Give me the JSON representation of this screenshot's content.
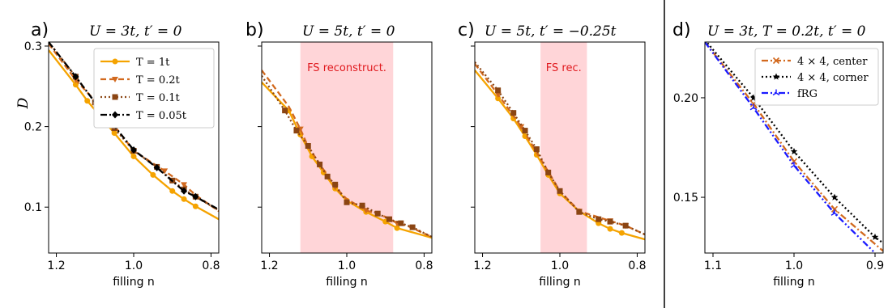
{
  "colors": {
    "T1": "#f5a300",
    "T02": "#d2691e",
    "T01": "#8b4513",
    "T005": "#000000",
    "center": "#d2691e",
    "corner": "#000000",
    "frg": "#1a1aff",
    "shade": "#ffd5d8",
    "region_text": "#e0191e"
  },
  "chart_data": [
    {
      "type": "line",
      "panel_label": "a)",
      "title": "U = 3t, t′ = 0",
      "xlabel": "filling n",
      "ylabel": "D",
      "xlim": [
        1.22,
        0.78
      ],
      "ylim": [
        0.043,
        0.305
      ],
      "xticks": [
        1.2,
        1.0,
        0.8
      ],
      "xtick_labels": [
        "1.2",
        "1.0",
        "0.8"
      ],
      "yticks": [
        0.1,
        0.2,
        0.3
      ],
      "ytick_labels": [
        "0.1",
        "0.2",
        "0.3"
      ],
      "legend_position": "upper right",
      "series": [
        {
          "name": "T = 1t",
          "style": "solid",
          "marker": "circle",
          "color_key": "T1",
          "x": [
            1.22,
            1.15,
            1.12,
            1.05,
            1.0,
            0.95,
            0.9,
            0.87,
            0.84,
            0.78
          ],
          "y": [
            0.295,
            0.252,
            0.232,
            0.192,
            0.163,
            0.14,
            0.12,
            0.11,
            0.101,
            0.085
          ],
          "mx": [
            1.15,
            1.12,
            1.05,
            1.0,
            0.95,
            0.9,
            0.87,
            0.84
          ],
          "my": [
            0.252,
            0.232,
            0.192,
            0.163,
            0.14,
            0.12,
            0.11,
            0.101
          ]
        },
        {
          "name": "T = 0.2t",
          "style": "dashed",
          "marker": "triangle-down",
          "color_key": "T02",
          "x": [
            1.22,
            1.15,
            1.1,
            1.0,
            0.92,
            0.87,
            0.84,
            0.78
          ],
          "y": [
            0.303,
            0.258,
            0.232,
            0.17,
            0.145,
            0.128,
            0.115,
            0.095
          ],
          "mx": [
            1.15,
            1.0,
            0.92,
            0.87
          ],
          "my": [
            0.258,
            0.17,
            0.145,
            0.128
          ]
        },
        {
          "name": "T = 0.1t",
          "style": "dotted",
          "marker": "square",
          "color_key": "T01",
          "x": [
            1.22,
            1.15,
            1.1,
            1.05,
            1.0,
            0.94,
            0.9,
            0.87,
            0.84,
            0.78
          ],
          "y": [
            0.305,
            0.262,
            0.23,
            0.198,
            0.17,
            0.15,
            0.133,
            0.122,
            0.113,
            0.096
          ],
          "mx": [
            1.15,
            1.1,
            1.05,
            1.0,
            0.94,
            0.9,
            0.87,
            0.84
          ],
          "my": [
            0.262,
            0.23,
            0.198,
            0.17,
            0.15,
            0.133,
            0.122,
            0.113
          ]
        },
        {
          "name": "T = 0.05t",
          "style": "dashdot",
          "marker": "diamond",
          "color_key": "T005",
          "x": [
            1.22,
            1.15,
            1.1,
            1.0,
            0.94,
            0.87,
            0.84,
            0.78
          ],
          "y": [
            0.305,
            0.262,
            0.23,
            0.171,
            0.149,
            0.12,
            0.113,
            0.097
          ],
          "mx": [
            1.15,
            1.0,
            0.94,
            0.87,
            0.84
          ],
          "my": [
            0.262,
            0.171,
            0.149,
            0.12,
            0.113
          ]
        }
      ]
    },
    {
      "type": "line",
      "panel_label": "b)",
      "title": "U = 5t, t′ = 0",
      "xlabel": "filling n",
      "ylabel": "",
      "xlim": [
        1.22,
        0.78
      ],
      "ylim": [
        0.043,
        0.305
      ],
      "xticks": [
        1.2,
        1.0,
        0.8
      ],
      "xtick_labels": [
        "1.2",
        "1.0",
        "0.8"
      ],
      "yticks": [
        0.1,
        0.2,
        0.3
      ],
      "ytick_labels": [
        "",
        "",
        ""
      ],
      "shaded_region": {
        "x": [
          1.12,
          0.88
        ],
        "label": "FS reconstruct."
      },
      "series": [
        {
          "style": "solid",
          "marker": "circle",
          "color_key": "T1",
          "x": [
            1.22,
            1.15,
            1.12,
            1.09,
            1.06,
            1.03,
            1.0,
            0.95,
            0.9,
            0.87,
            0.84,
            0.78
          ],
          "y": [
            0.255,
            0.22,
            0.19,
            0.163,
            0.143,
            0.123,
            0.108,
            0.094,
            0.082,
            0.074,
            0.07,
            0.062
          ],
          "mx": [
            1.15,
            1.12,
            1.09,
            1.06,
            1.03,
            1.0,
            0.95,
            0.9,
            0.87
          ],
          "my": [
            0.22,
            0.19,
            0.163,
            0.143,
            0.123,
            0.108,
            0.094,
            0.082,
            0.074
          ]
        },
        {
          "style": "dashed",
          "marker": "triangle-down",
          "color_key": "T02",
          "x": [
            1.22,
            1.15,
            1.12,
            1.1,
            1.03,
            1.0,
            0.95,
            0.9,
            0.87,
            0.84,
            0.78
          ],
          "y": [
            0.27,
            0.225,
            0.197,
            0.175,
            0.125,
            0.11,
            0.096,
            0.088,
            0.08,
            0.076,
            0.063
          ],
          "mx": [
            1.12,
            1.03,
            0.95,
            0.87
          ],
          "my": [
            0.197,
            0.125,
            0.096,
            0.08
          ]
        },
        {
          "style": "dotted",
          "marker": "square",
          "color_key": "T01",
          "x": [
            1.22,
            1.16,
            1.13,
            1.1,
            1.07,
            1.05,
            1.03,
            1.0,
            0.96,
            0.92,
            0.89,
            0.86,
            0.83,
            0.78
          ],
          "y": [
            0.263,
            0.22,
            0.195,
            0.176,
            0.153,
            0.138,
            0.128,
            0.106,
            0.102,
            0.092,
            0.085,
            0.08,
            0.075,
            0.063
          ],
          "mx": [
            1.16,
            1.13,
            1.1,
            1.07,
            1.05,
            1.03,
            1.0,
            0.96,
            0.92,
            0.89,
            0.86,
            0.83
          ],
          "my": [
            0.22,
            0.195,
            0.176,
            0.153,
            0.138,
            0.128,
            0.106,
            0.102,
            0.092,
            0.085,
            0.08,
            0.075
          ]
        }
      ]
    },
    {
      "type": "line",
      "panel_label": "c)",
      "title": "U = 5t, t′ = −0.25t",
      "xlabel": "filling n",
      "ylabel": "",
      "xlim": [
        1.22,
        0.78
      ],
      "ylim": [
        0.043,
        0.305
      ],
      "xticks": [
        1.2,
        1.0,
        0.8
      ],
      "xtick_labels": [
        "1.2",
        "1.0",
        "0.8"
      ],
      "yticks": [
        0.1,
        0.2,
        0.3
      ],
      "ytick_labels": [
        "",
        "",
        ""
      ],
      "shaded_region": {
        "x": [
          1.05,
          0.93
        ],
        "label": "FS rec."
      },
      "series": [
        {
          "style": "solid",
          "marker": "circle",
          "color_key": "T1",
          "x": [
            1.22,
            1.16,
            1.12,
            1.09,
            1.06,
            1.03,
            1.0,
            0.95,
            0.9,
            0.87,
            0.84,
            0.78
          ],
          "y": [
            0.27,
            0.235,
            0.21,
            0.188,
            0.165,
            0.14,
            0.117,
            0.095,
            0.08,
            0.073,
            0.068,
            0.06
          ],
          "mx": [
            1.16,
            1.12,
            1.09,
            1.06,
            1.03,
            1.0,
            0.95,
            0.9,
            0.87,
            0.84
          ],
          "my": [
            0.235,
            0.21,
            0.188,
            0.165,
            0.14,
            0.117,
            0.095,
            0.08,
            0.073,
            0.068
          ]
        },
        {
          "style": "dashed",
          "marker": "triangle-down",
          "color_key": "T02",
          "x": [
            1.22,
            1.16,
            1.1,
            1.0,
            0.95,
            0.87,
            0.83,
            0.78
          ],
          "y": [
            0.278,
            0.24,
            0.2,
            0.12,
            0.095,
            0.083,
            0.077,
            0.066
          ],
          "mx": [
            1.16,
            1.1,
            0.95,
            0.87,
            0.83
          ],
          "my": [
            0.24,
            0.2,
            0.095,
            0.083,
            0.077
          ]
        },
        {
          "style": "dotted",
          "marker": "square",
          "color_key": "T01",
          "x": [
            1.22,
            1.16,
            1.12,
            1.09,
            1.06,
            1.03,
            1.0,
            0.95,
            0.9,
            0.87,
            0.83,
            0.78
          ],
          "y": [
            0.28,
            0.245,
            0.217,
            0.195,
            0.172,
            0.143,
            0.12,
            0.094,
            0.085,
            0.082,
            0.077,
            0.066
          ],
          "mx": [
            1.16,
            1.12,
            1.09,
            1.06,
            1.03,
            1.0,
            0.95,
            0.9,
            0.87,
            0.83
          ],
          "my": [
            0.245,
            0.217,
            0.195,
            0.172,
            0.143,
            0.12,
            0.094,
            0.085,
            0.082,
            0.077
          ]
        }
      ]
    },
    {
      "type": "line",
      "panel_label": "d)",
      "title": "U = 3t, T = 0.2t, t′ = 0",
      "xlabel": "filling n",
      "ylabel": "",
      "xlim": [
        1.11,
        0.89
      ],
      "ylim": [
        0.122,
        0.228
      ],
      "xticks": [
        1.1,
        1.0,
        0.9
      ],
      "xtick_labels": [
        "1.1",
        "1.0",
        "0.9"
      ],
      "yticks": [
        0.15,
        0.2
      ],
      "ytick_labels": [
        "0.15",
        "0.20"
      ],
      "legend_position": "upper right",
      "series": [
        {
          "name": "4 × 4, center",
          "style": "dashdot",
          "marker": "x",
          "color_key": "center",
          "x": [
            1.11,
            1.05,
            1.0,
            0.95,
            0.89
          ],
          "y": [
            0.228,
            0.197,
            0.168,
            0.144,
            0.123
          ],
          "mx": [
            1.05,
            1.0,
            0.95
          ],
          "my": [
            0.197,
            0.168,
            0.144
          ]
        },
        {
          "name": "4 × 4, corner",
          "style": "dotted",
          "marker": "star",
          "color_key": "corner",
          "x": [
            1.11,
            1.05,
            1.0,
            0.95,
            0.9,
            0.89
          ],
          "y": [
            0.229,
            0.2,
            0.173,
            0.15,
            0.13,
            0.127
          ],
          "mx": [
            1.05,
            1.0,
            0.95,
            0.9
          ],
          "my": [
            0.2,
            0.173,
            0.15,
            0.13
          ]
        },
        {
          "name": "fRG",
          "style": "dashdotdot",
          "marker": "tri",
          "color_key": "frg",
          "x": [
            1.11,
            1.05,
            1.0,
            0.95,
            0.9,
            0.89
          ],
          "y": [
            0.228,
            0.195,
            0.166,
            0.142,
            0.122,
            0.118
          ],
          "mx": [
            1.05,
            1.0,
            0.95
          ],
          "my": [
            0.195,
            0.166,
            0.142
          ]
        }
      ]
    }
  ]
}
